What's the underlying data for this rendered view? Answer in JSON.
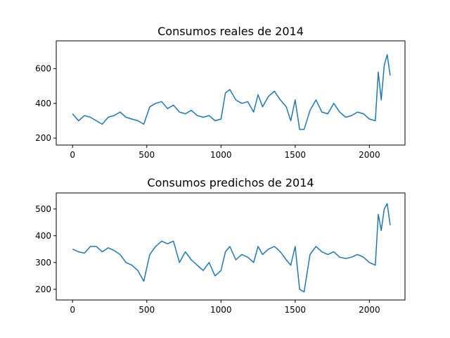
{
  "chart_data": [
    {
      "type": "line",
      "title": "Consumos reales de 2014",
      "xlabel": "",
      "ylabel": "",
      "xlim": [
        -110,
        2240
      ],
      "ylim": [
        160,
        760
      ],
      "xticks": [
        0,
        500,
        1000,
        1500,
        2000
      ],
      "yticks": [
        200,
        400,
        600
      ],
      "grid": false,
      "color": "#1f77b4",
      "series": [
        {
          "x": [
            0,
            40,
            80,
            120,
            160,
            200,
            240,
            280,
            320,
            360,
            400,
            440,
            480,
            520,
            560,
            600,
            640,
            680,
            720,
            760,
            800,
            840,
            880,
            920,
            960,
            1000,
            1030,
            1060,
            1100,
            1140,
            1180,
            1220,
            1250,
            1280,
            1320,
            1360,
            1400,
            1440,
            1470,
            1500,
            1530,
            1560,
            1600,
            1640,
            1680,
            1720,
            1760,
            1800,
            1840,
            1880,
            1920,
            1960,
            2000,
            2040,
            2060,
            2080,
            2100,
            2120,
            2140
          ],
          "y": [
            340,
            300,
            330,
            320,
            300,
            280,
            320,
            330,
            350,
            320,
            310,
            300,
            280,
            380,
            400,
            410,
            370,
            390,
            350,
            340,
            360,
            330,
            320,
            330,
            300,
            310,
            460,
            480,
            420,
            400,
            410,
            350,
            450,
            380,
            440,
            470,
            420,
            380,
            300,
            420,
            250,
            250,
            360,
            420,
            350,
            340,
            400,
            350,
            320,
            330,
            350,
            340,
            310,
            300,
            580,
            420,
            620,
            680,
            560
          ]
        }
      ]
    },
    {
      "type": "line",
      "title": "Consumos predichos de 2014",
      "xlabel": "",
      "ylabel": "",
      "xlim": [
        -110,
        2240
      ],
      "ylim": [
        160,
        560
      ],
      "xticks": [
        0,
        500,
        1000,
        1500,
        2000
      ],
      "yticks": [
        200,
        300,
        400,
        500
      ],
      "grid": false,
      "color": "#1f77b4",
      "series": [
        {
          "x": [
            0,
            40,
            80,
            120,
            160,
            200,
            240,
            280,
            320,
            360,
            400,
            440,
            480,
            520,
            560,
            600,
            640,
            680,
            720,
            760,
            800,
            840,
            880,
            920,
            960,
            1000,
            1030,
            1060,
            1100,
            1140,
            1180,
            1220,
            1250,
            1280,
            1320,
            1360,
            1400,
            1440,
            1470,
            1500,
            1530,
            1560,
            1600,
            1640,
            1680,
            1720,
            1760,
            1800,
            1840,
            1880,
            1920,
            1960,
            2000,
            2040,
            2060,
            2080,
            2100,
            2120,
            2140
          ],
          "y": [
            350,
            340,
            335,
            360,
            360,
            340,
            355,
            345,
            330,
            300,
            290,
            270,
            230,
            330,
            360,
            380,
            370,
            380,
            300,
            340,
            310,
            290,
            270,
            300,
            250,
            270,
            340,
            360,
            310,
            330,
            320,
            300,
            360,
            330,
            350,
            360,
            340,
            310,
            290,
            360,
            200,
            190,
            330,
            360,
            340,
            330,
            340,
            320,
            315,
            320,
            330,
            320,
            300,
            290,
            480,
            420,
            500,
            520,
            440
          ]
        }
      ]
    }
  ]
}
